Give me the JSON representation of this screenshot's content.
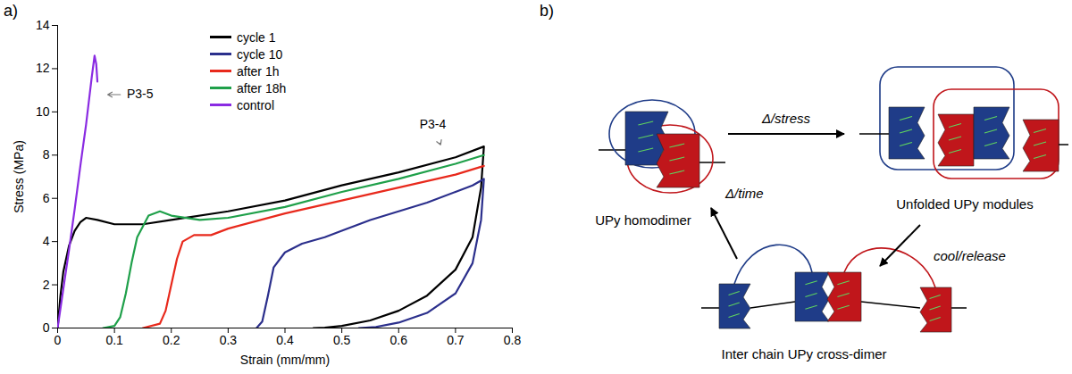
{
  "panel_labels": [
    "a)",
    "b)"
  ],
  "chart_data": {
    "type": "line",
    "x_label": "Strain (mm/mm)",
    "y_label": "Stress (MPa)",
    "xlim": [
      0,
      0.8
    ],
    "xticks": [
      0,
      0.1,
      0.2,
      0.3,
      0.4,
      0.5,
      0.6,
      0.7,
      0.8
    ],
    "ylim": [
      0,
      14
    ],
    "yticks": [
      0,
      2,
      4,
      6,
      8,
      10,
      12,
      14
    ],
    "grid": false,
    "legend": "top",
    "series": [
      {
        "name": "cycle 1",
        "color": "#000000",
        "x": [
          0,
          0.005,
          0.01,
          0.02,
          0.03,
          0.04,
          0.05,
          0.07,
          0.1,
          0.15,
          0.2,
          0.3,
          0.4,
          0.5,
          0.6,
          0.7,
          0.75,
          0.745,
          0.73,
          0.7,
          0.65,
          0.6,
          0.55,
          0.5,
          0.47,
          0.45
        ],
        "values": [
          0,
          1.5,
          2.6,
          3.8,
          4.5,
          4.9,
          5.1,
          5.0,
          4.8,
          4.8,
          5.0,
          5.4,
          5.9,
          6.6,
          7.2,
          7.9,
          8.4,
          6.5,
          4.2,
          2.7,
          1.5,
          0.8,
          0.35,
          0.1,
          0.02,
          0
        ]
      },
      {
        "name": "cycle 10",
        "color": "#2b2f8c",
        "x": [
          0.35,
          0.36,
          0.37,
          0.38,
          0.4,
          0.43,
          0.47,
          0.5,
          0.55,
          0.6,
          0.65,
          0.7,
          0.73,
          0.75,
          0.745,
          0.73,
          0.7,
          0.65,
          0.6,
          0.56,
          0.53
        ],
        "values": [
          0,
          0.3,
          1.5,
          2.8,
          3.5,
          3.9,
          4.2,
          4.5,
          5.0,
          5.4,
          5.8,
          6.3,
          6.6,
          6.9,
          5.0,
          3.0,
          1.6,
          0.7,
          0.25,
          0.05,
          0
        ]
      },
      {
        "name": "after 1h",
        "color": "#e8291c",
        "x": [
          0.15,
          0.18,
          0.19,
          0.2,
          0.21,
          0.22,
          0.24,
          0.27,
          0.3,
          0.4,
          0.5,
          0.6,
          0.7,
          0.75
        ],
        "values": [
          0,
          0.2,
          0.8,
          2.0,
          3.2,
          4.0,
          4.3,
          4.3,
          4.6,
          5.3,
          5.9,
          6.5,
          7.1,
          7.5
        ]
      },
      {
        "name": "after 18h",
        "color": "#1fa04a",
        "x": [
          0.08,
          0.1,
          0.11,
          0.12,
          0.13,
          0.14,
          0.16,
          0.18,
          0.2,
          0.25,
          0.3,
          0.4,
          0.5,
          0.6,
          0.7,
          0.75
        ],
        "values": [
          0,
          0.1,
          0.5,
          1.6,
          3.0,
          4.2,
          5.2,
          5.4,
          5.2,
          5.0,
          5.1,
          5.6,
          6.3,
          6.9,
          7.6,
          8.0
        ]
      },
      {
        "name": "control",
        "color": "#8a2be2",
        "x": [
          0,
          0.01,
          0.02,
          0.03,
          0.04,
          0.05,
          0.06,
          0.065,
          0.068,
          0.07
        ],
        "values": [
          0,
          1.8,
          3.6,
          5.5,
          7.5,
          9.4,
          11.6,
          12.6,
          12.2,
          11.4
        ]
      }
    ],
    "annotations": [
      {
        "text": "P3-5",
        "x": 0.145,
        "y": 10.8,
        "target_x": 0.085,
        "target_y": 10.8
      },
      {
        "text": "P3-4",
        "x": 0.66,
        "y": 9.4,
        "target_x": 0.675,
        "target_y": 8.4
      }
    ]
  },
  "diagram": {
    "nodes": [
      {
        "label": "UPy homodimer"
      },
      {
        "label": "Unfolded UPy modules"
      },
      {
        "label": "Inter chain UPy cross-dimer"
      }
    ],
    "edges": [
      {
        "from": 0,
        "to": 1,
        "label": "Δ/stress"
      },
      {
        "from": 1,
        "to": 2,
        "label": "cool/release"
      },
      {
        "from": 2,
        "to": 0,
        "label": "Δ/time"
      }
    ]
  }
}
